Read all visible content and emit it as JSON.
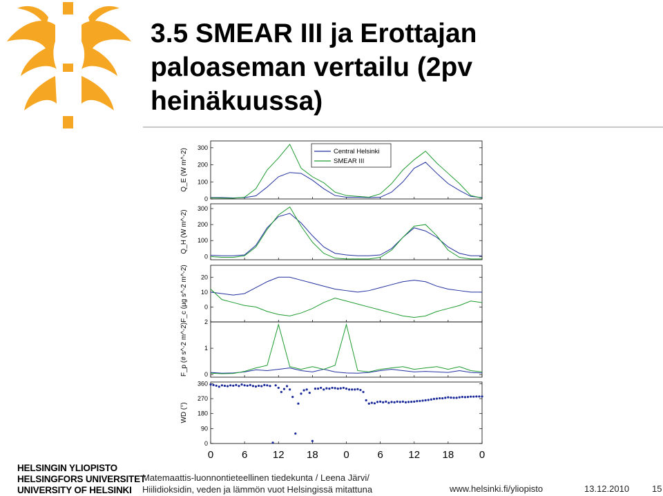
{
  "slide": {
    "title_lines": [
      "3.5 SMEAR III ja Erottajan",
      "paloaseman vertailu (2pv",
      "heinäkuussa)"
    ],
    "university_lines": [
      "HELSINGIN YLIOPISTO",
      "HELSINGFORS UNIVERSITET",
      "UNIVERSITY OF HELSINKI"
    ],
    "footer_lines": [
      "Matemaattis-luonnontieteellinen tiedekunta / Leena Järvi/",
      "Hiilidioksidin, veden ja lämmön  vuot Helsingissä mitattuna"
    ],
    "url": "www.helsinki.fi/yliopisto",
    "date": "13.12.2010",
    "page_number": "15"
  },
  "colors": {
    "accent": "#f5a623",
    "central_helsinki": "#1f2e9e",
    "smear_iii": "#1c9a2e",
    "wd_marker": "#1a2a9a"
  },
  "chart_data": [
    {
      "type": "line",
      "ylabel": "Q_E (W m^-2)",
      "yticks": [
        "0",
        "100",
        "200",
        "300"
      ],
      "ylim": [
        0,
        340
      ],
      "legend": {
        "placement": "top-center",
        "entries": [
          "Central Helsinki",
          "SMEAR III"
        ]
      },
      "x_hours": [
        0,
        2,
        4,
        6,
        8,
        10,
        12,
        14,
        16,
        18,
        20,
        22,
        24,
        26,
        28,
        30,
        32,
        34,
        36,
        38,
        40,
        42,
        44,
        46,
        48
      ],
      "series": [
        {
          "name": "Central Helsinki",
          "values": [
            8,
            8,
            6,
            8,
            18,
            70,
            130,
            155,
            150,
            110,
            60,
            20,
            10,
            10,
            8,
            10,
            40,
            100,
            180,
            215,
            150,
            90,
            50,
            15,
            8
          ]
        },
        {
          "name": "SMEAR III",
          "values": [
            6,
            5,
            4,
            10,
            60,
            170,
            240,
            320,
            180,
            130,
            95,
            40,
            20,
            15,
            10,
            30,
            90,
            170,
            230,
            280,
            210,
            150,
            90,
            20,
            5
          ]
        }
      ]
    },
    {
      "type": "line",
      "ylabel": "Q_H (W m^-2)",
      "yticks": [
        "0",
        "100",
        "200",
        "300"
      ],
      "ylim": [
        -20,
        330
      ],
      "x_hours": [
        0,
        2,
        4,
        6,
        8,
        10,
        12,
        14,
        16,
        18,
        20,
        22,
        24,
        26,
        28,
        30,
        32,
        34,
        36,
        38,
        40,
        42,
        44,
        46,
        48
      ],
      "series": [
        {
          "name": "Central Helsinki",
          "values": [
            8,
            5,
            5,
            10,
            70,
            180,
            250,
            270,
            210,
            130,
            60,
            20,
            10,
            5,
            5,
            10,
            50,
            120,
            180,
            160,
            120,
            60,
            20,
            5,
            5
          ]
        },
        {
          "name": "SMEAR III",
          "values": [
            0,
            -5,
            -5,
            5,
            60,
            170,
            260,
            310,
            190,
            90,
            20,
            -10,
            -15,
            -15,
            -15,
            -5,
            40,
            120,
            190,
            200,
            130,
            40,
            -5,
            -15,
            -15
          ]
        }
      ]
    },
    {
      "type": "line",
      "ylabel": "F_c (µg s^-2 m^-2)",
      "yticks": [
        "0",
        "10",
        "20"
      ],
      "ylim": [
        -10,
        28
      ],
      "x_hours": [
        0,
        2,
        4,
        6,
        8,
        10,
        12,
        14,
        16,
        18,
        20,
        22,
        24,
        26,
        28,
        30,
        32,
        34,
        36,
        38,
        40,
        42,
        44,
        46,
        48
      ],
      "series": [
        {
          "name": "Central Helsinki",
          "values": [
            10,
            9,
            8,
            9,
            13,
            17,
            20,
            20,
            18,
            16,
            14,
            12,
            11,
            10,
            11,
            13,
            15,
            17,
            18,
            17,
            14,
            12,
            11,
            10,
            10
          ]
        },
        {
          "name": "SMEAR III",
          "values": [
            12,
            5,
            3,
            1,
            0,
            -3,
            -5,
            -6,
            -4,
            -1,
            3,
            6,
            4,
            2,
            0,
            -2,
            -4,
            -6,
            -7,
            -6,
            -3,
            -1,
            1,
            4,
            3
          ]
        }
      ]
    },
    {
      "type": "line",
      "ylabel": "F_p (# s^-2 m^-2)",
      "yticks": [
        "0",
        "1",
        "2"
      ],
      "ylim": [
        -0.1,
        2.0
      ],
      "x_hours": [
        0,
        2,
        4,
        6,
        8,
        10,
        12,
        14,
        16,
        18,
        20,
        22,
        24,
        26,
        28,
        30,
        32,
        34,
        36,
        38,
        40,
        42,
        44,
        46,
        48
      ],
      "series": [
        {
          "name": "Central Helsinki",
          "values": [
            0.08,
            0.05,
            0.06,
            0.1,
            0.18,
            0.15,
            0.2,
            0.25,
            0.15,
            0.1,
            0.2,
            0.1,
            0.06,
            0.05,
            0.08,
            0.15,
            0.2,
            0.15,
            0.1,
            0.12,
            0.1,
            0.08,
            0.15,
            0.08,
            0.06
          ]
        },
        {
          "name": "SMEAR III",
          "values": [
            0.05,
            0.03,
            0.04,
            0.12,
            0.25,
            0.35,
            1.9,
            0.3,
            0.2,
            0.3,
            0.2,
            0.35,
            1.9,
            0.15,
            0.1,
            0.2,
            0.25,
            0.3,
            0.2,
            0.25,
            0.3,
            0.2,
            0.3,
            0.15,
            0.1
          ]
        }
      ]
    },
    {
      "type": "scatter",
      "ylabel": "WD (°)",
      "yticks": [
        "0",
        "90",
        "180",
        "270",
        "360"
      ],
      "ylim": [
        0,
        370
      ],
      "x": [
        0,
        0.5,
        1,
        1.5,
        2,
        2.5,
        3,
        3.5,
        4,
        4.5,
        5,
        5.5,
        6,
        6.5,
        7,
        7.5,
        8,
        8.5,
        9,
        9.5,
        10,
        10.5,
        11,
        11.5,
        12,
        12.5,
        13,
        13.5,
        14,
        14.5,
        15,
        15.5,
        16,
        16.5,
        17,
        17.5,
        18,
        18.5,
        19,
        19.5,
        20,
        20.5,
        21,
        21.5,
        22,
        22.5,
        23,
        23.5,
        24,
        24.5,
        25,
        25.5,
        26,
        26.5,
        27,
        27.5,
        28,
        28.5,
        29,
        29.5,
        30,
        30.5,
        31,
        31.5,
        32,
        32.5,
        33,
        33.5,
        34,
        34.5,
        35,
        35.5,
        36,
        36.5,
        37,
        37.5,
        38,
        38.5,
        39,
        39.5,
        40,
        40.5,
        41,
        41.5,
        42,
        42.5,
        43,
        43.5,
        44,
        44.5,
        45,
        45.5,
        46,
        46.5,
        47,
        47.5,
        48
      ],
      "y": [
        355,
        352,
        348,
        342,
        350,
        347,
        345,
        350,
        348,
        352,
        346,
        355,
        350,
        348,
        352,
        346,
        343,
        347,
        345,
        352,
        350,
        346,
        5,
        350,
        335,
        310,
        328,
        345,
        325,
        280,
        60,
        240,
        300,
        320,
        325,
        305,
        15,
        330,
        330,
        335,
        325,
        332,
        330,
        335,
        333,
        330,
        332,
        335,
        330,
        325,
        325,
        325,
        327,
        322,
        310,
        260,
        240,
        245,
        242,
        250,
        252,
        248,
        252,
        245,
        250,
        248,
        252,
        250,
        252,
        248,
        250,
        251,
        252,
        255,
        256,
        258,
        260,
        262,
        265,
        268,
        270,
        272,
        272,
        275,
        278,
        276,
        275,
        275,
        278,
        280,
        279,
        280,
        282,
        282,
        283,
        283,
        283
      ],
      "x_ticks": [
        "0",
        "6",
        "12",
        "18",
        "0",
        "6",
        "12",
        "18",
        "0"
      ]
    }
  ]
}
